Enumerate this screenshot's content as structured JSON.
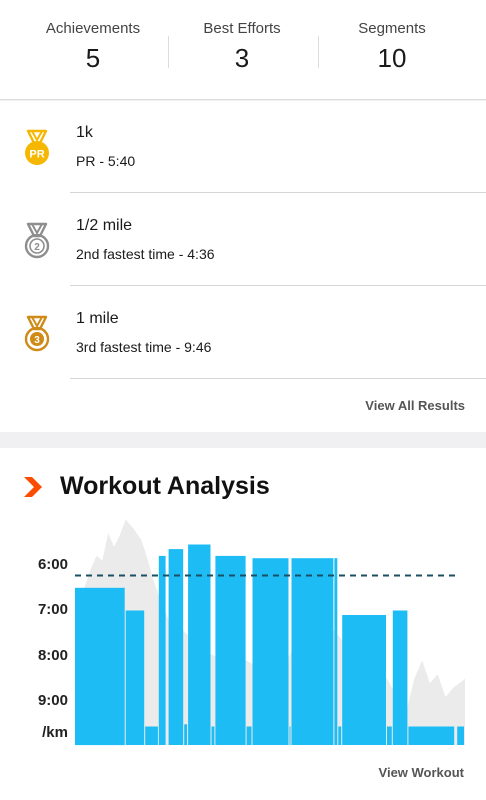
{
  "stats": [
    {
      "label": "Achievements",
      "value": "5"
    },
    {
      "label": "Best Efforts",
      "value": "3"
    },
    {
      "label": "Segments",
      "value": "10"
    }
  ],
  "results": [
    {
      "title": "1k",
      "subtitle": "PR - 5:40",
      "medal": "pr-medal-icon",
      "medal_text": "PR",
      "color": "#f5b700"
    },
    {
      "title": "1/2 mile",
      "subtitle": "2nd fastest time - 4:36",
      "medal": "silver-medal-icon",
      "medal_text": "2",
      "color": "#8e8e8e"
    },
    {
      "title": "1 mile",
      "subtitle": "3rd fastest time - 9:46",
      "medal": "bronze-medal-icon",
      "medal_text": "3",
      "color": "#d08a17"
    }
  ],
  "view_all_label": "View All Results",
  "analysis": {
    "title": "Workout Analysis",
    "accent_color": "#fc4c02",
    "bar_color": "#1ebcf5",
    "y_ticks": [
      "6:00",
      "7:00",
      "8:00",
      "9:00"
    ],
    "y_unit": "/km",
    "view_workout_label": "View Workout"
  },
  "chart_data": {
    "type": "bar",
    "y_axis": "pace (min/km)",
    "y_ticks": [
      "6:00",
      "7:00",
      "8:00",
      "9:00"
    ],
    "ylim_pace_minutes": [
      5.0,
      10.0
    ],
    "average_pace_minutes": 6.23,
    "intervals": [
      {
        "start": 0.0,
        "end": 0.13,
        "pace": 6.5
      },
      {
        "start": 0.13,
        "end": 0.18,
        "pace": 7.0
      },
      {
        "start": 0.18,
        "end": 0.215,
        "pace": 9.55
      },
      {
        "start": 0.215,
        "end": 0.235,
        "pace": 5.8
      },
      {
        "start": 0.24,
        "end": 0.28,
        "pace": 5.65
      },
      {
        "start": 0.28,
        "end": 0.29,
        "pace": 9.5
      },
      {
        "start": 0.29,
        "end": 0.35,
        "pace": 5.55
      },
      {
        "start": 0.35,
        "end": 0.36,
        "pace": 9.55
      },
      {
        "start": 0.36,
        "end": 0.44,
        "pace": 5.8
      },
      {
        "start": 0.44,
        "end": 0.455,
        "pace": 9.55
      },
      {
        "start": 0.455,
        "end": 0.55,
        "pace": 5.85
      },
      {
        "start": 0.55,
        "end": 0.555,
        "pace": 9.55
      },
      {
        "start": 0.555,
        "end": 0.665,
        "pace": 5.85
      },
      {
        "start": 0.665,
        "end": 0.675,
        "pace": 5.85
      },
      {
        "start": 0.675,
        "end": 0.685,
        "pace": 9.55
      },
      {
        "start": 0.685,
        "end": 0.8,
        "pace": 7.1
      },
      {
        "start": 0.8,
        "end": 0.815,
        "pace": 9.55
      },
      {
        "start": 0.815,
        "end": 0.855,
        "pace": 7.0
      },
      {
        "start": 0.855,
        "end": 0.975,
        "pace": 9.55
      },
      {
        "start": 0.98,
        "end": 1.0,
        "pace": 9.55
      }
    ],
    "elevation_profile": [
      [
        0.0,
        6.8
      ],
      [
        0.02,
        6.6
      ],
      [
        0.04,
        6.1
      ],
      [
        0.055,
        5.8
      ],
      [
        0.07,
        5.9
      ],
      [
        0.085,
        5.3
      ],
      [
        0.1,
        5.6
      ],
      [
        0.115,
        5.35
      ],
      [
        0.13,
        5.0
      ],
      [
        0.15,
        5.2
      ],
      [
        0.17,
        5.45
      ],
      [
        0.18,
        5.7
      ],
      [
        0.2,
        6.3
      ],
      [
        0.22,
        6.8
      ],
      [
        0.24,
        7.2
      ],
      [
        0.27,
        7.4
      ],
      [
        0.3,
        7.6
      ],
      [
        0.33,
        7.9
      ],
      [
        0.36,
        8.0
      ],
      [
        0.4,
        8.3
      ],
      [
        0.44,
        8.1
      ],
      [
        0.48,
        8.3
      ],
      [
        0.5,
        8.05
      ],
      [
        0.53,
        8.35
      ],
      [
        0.56,
        7.8
      ],
      [
        0.6,
        7.5
      ],
      [
        0.63,
        7.2
      ],
      [
        0.66,
        7.4
      ],
      [
        0.7,
        7.8
      ],
      [
        0.74,
        8.0
      ],
      [
        0.78,
        8.2
      ],
      [
        0.82,
        8.8
      ],
      [
        0.85,
        9.2
      ],
      [
        0.87,
        8.5
      ],
      [
        0.89,
        8.1
      ],
      [
        0.91,
        8.6
      ],
      [
        0.93,
        8.4
      ],
      [
        0.95,
        8.9
      ],
      [
        0.97,
        8.7
      ],
      [
        1.0,
        8.5
      ]
    ]
  }
}
